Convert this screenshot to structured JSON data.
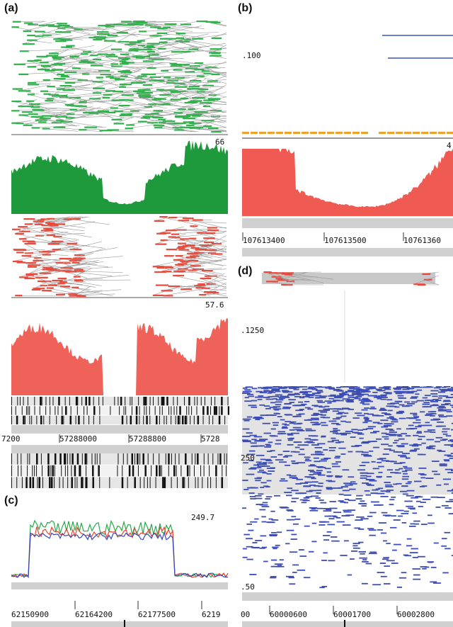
{
  "panel_a": {
    "label": "(a)",
    "green_max": "66",
    "red_max": "57.6",
    "ticks": [
      "7200",
      "57288000",
      "57288800",
      "5728"
    ]
  },
  "panel_b": {
    "label": "(b)",
    "top_label": ".100",
    "coverage_max": "4",
    "ticks": [
      "107613400",
      "107613500",
      "10761360"
    ]
  },
  "panel_c": {
    "label": "(c)",
    "max": "249.7",
    "ticks": [
      "62150900",
      "62164200",
      "62177500",
      "6219"
    ]
  },
  "panel_d": {
    "label": "(d)",
    "y_labels": [
      ".1250",
      "250",
      ".50"
    ],
    "ticks": [
      "00",
      "60000600",
      "60001700",
      "60002800"
    ]
  }
}
